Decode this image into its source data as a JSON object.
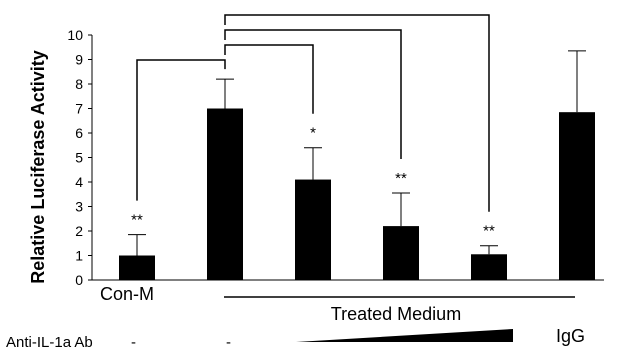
{
  "chart_data": {
    "type": "bar",
    "ylabel": "Relative Luciferase Activity",
    "ylim": [
      0,
      10
    ],
    "yticks": [
      "0",
      "1",
      "2",
      "3",
      "4",
      "5",
      "6",
      "7",
      "8",
      "9",
      "10"
    ],
    "grid": false,
    "bar_color": "#000000",
    "values": [
      1.0,
      7.0,
      4.1,
      2.2,
      1.05,
      6.85
    ],
    "errors": [
      0.85,
      1.2,
      1.3,
      1.35,
      0.35,
      2.5
    ],
    "significance": [
      "**",
      "",
      "*",
      "**",
      "**",
      ""
    ],
    "comparisons": [
      {
        "from": 1,
        "to": 0
      },
      {
        "from": 1,
        "to": 2
      },
      {
        "from": 1,
        "to": 3
      },
      {
        "from": 1,
        "to": 4
      }
    ],
    "group_labels": {
      "control": "Con-M",
      "treated": "Treated Medium"
    },
    "antibody_row": {
      "label": "Anti-IL-1a Ab",
      "marks": [
        "-",
        "-"
      ],
      "igg": "IgG",
      "gradient": "increasing"
    }
  }
}
